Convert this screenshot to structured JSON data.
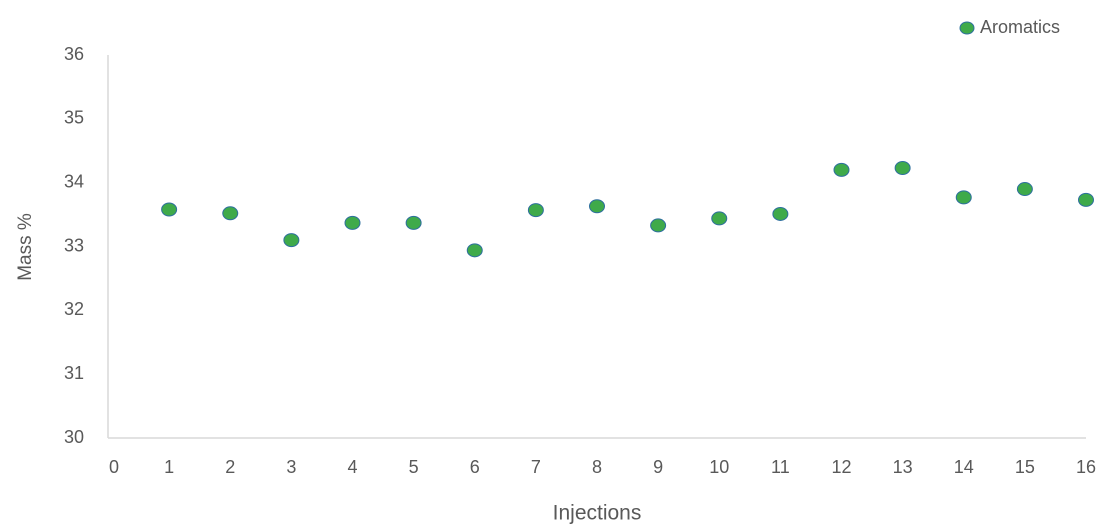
{
  "chart_data": {
    "type": "scatter",
    "x_label": "Injections",
    "y_label": "Mass %",
    "x": [
      1,
      2,
      3,
      4,
      5,
      6,
      7,
      8,
      9,
      10,
      11,
      12,
      13,
      14,
      15,
      16
    ],
    "series": [
      {
        "name": "Aromatics",
        "color": "#3faa4a",
        "values": [
          33.58,
          33.52,
          33.1,
          33.37,
          33.37,
          32.94,
          33.57,
          33.63,
          33.33,
          33.44,
          33.51,
          34.2,
          34.23,
          33.77,
          33.9,
          33.73
        ]
      }
    ],
    "xlim": [
      0,
      16
    ],
    "xticks": [
      0,
      1,
      2,
      3,
      4,
      5,
      6,
      7,
      8,
      9,
      10,
      11,
      12,
      13,
      14,
      15,
      16
    ],
    "ylim": [
      30,
      36
    ],
    "yticks": [
      30,
      31,
      32,
      33,
      34,
      35,
      36
    ],
    "grid": false,
    "legend": "top-right"
  }
}
